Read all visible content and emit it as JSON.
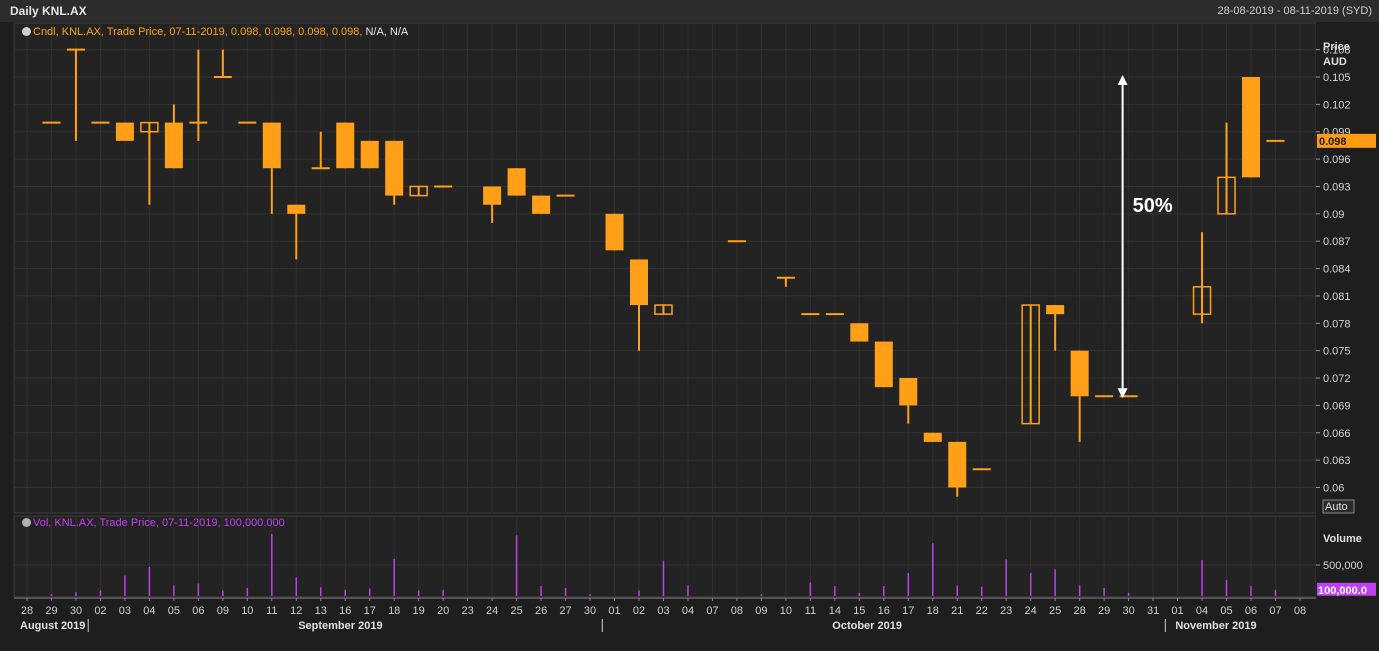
{
  "window": {
    "title": "Daily KNL.AX",
    "date_range": "28-08-2019 - 08-11-2019 (SYD)"
  },
  "price_panel": {
    "legend_main": "Cndl, KNL.AX, Trade Price, 07-11-2019, 0.098, 0.098, 0.098, 0.098,",
    "legend_tail": "N/A, N/A",
    "axis_title_1": "Price",
    "axis_title_2": "AUD",
    "last_price_label": "0.098",
    "auto_button": "Auto",
    "annotation_text": "50%"
  },
  "volume_panel": {
    "legend": "Vol, KNL.AX, Trade Price, 07-11-2019, 100,000.000",
    "axis_title": "Volume",
    "tick_label": "500,000",
    "last_volume_label": "100,000.0"
  },
  "colors": {
    "candle": "#ffa018",
    "volume": "#c040f0",
    "annotation": "#ffffff",
    "background": "#1e1e1e"
  },
  "chart_data": {
    "type": "candlestick",
    "price_axis": {
      "ticks": [
        "0.108",
        "0.105",
        "0.102",
        "0.099",
        "0.096",
        "0.093",
        "0.09",
        "0.087",
        "0.084",
        "0.081",
        "0.078",
        "0.075",
        "0.072",
        "0.069",
        "0.066",
        "0.063",
        "0.06"
      ],
      "range": [
        0.0567,
        0.1098
      ]
    },
    "volume_axis": {
      "range": [
        0,
        1000000
      ],
      "ticks": [
        500000
      ]
    },
    "x_labels": [
      "28",
      "29",
      "30",
      "02",
      "03",
      "04",
      "05",
      "06",
      "09",
      "10",
      "11",
      "12",
      "13",
      "16",
      "17",
      "18",
      "19",
      "20",
      "23",
      "24",
      "25",
      "26",
      "27",
      "30",
      "01",
      "02",
      "03",
      "04",
      "07",
      "08",
      "09",
      "10",
      "11",
      "14",
      "15",
      "16",
      "17",
      "18",
      "21",
      "22",
      "23",
      "24",
      "25",
      "28",
      "29",
      "30",
      "31",
      "01",
      "04",
      "05",
      "06",
      "07",
      "08"
    ],
    "months": [
      {
        "label": "August 2019",
        "start_index": 0
      },
      {
        "label": "September 2019",
        "start_index": 3
      },
      {
        "label": "October 2019",
        "start_index": 24
      },
      {
        "label": "November 2019",
        "start_index": 47
      }
    ],
    "candles": [
      {
        "x": "29-08",
        "i": 1,
        "o": 0.1,
        "h": 0.1,
        "l": 0.1,
        "c": 0.1
      },
      {
        "x": "30-08",
        "i": 2,
        "o": 0.108,
        "h": 0.108,
        "l": 0.098,
        "c": 0.108
      },
      {
        "x": "02-09",
        "i": 3,
        "o": 0.1,
        "h": 0.1,
        "l": 0.1,
        "c": 0.1
      },
      {
        "x": "03-09",
        "i": 4,
        "o": 0.1,
        "h": 0.1,
        "l": 0.098,
        "c": 0.098
      },
      {
        "x": "04-09",
        "i": 5,
        "o": 0.099,
        "h": 0.1,
        "l": 0.091,
        "c": 0.1
      },
      {
        "x": "05-09",
        "i": 6,
        "o": 0.1,
        "h": 0.102,
        "l": 0.095,
        "c": 0.095
      },
      {
        "x": "06-09",
        "i": 7,
        "o": 0.1,
        "h": 0.108,
        "l": 0.098,
        "c": 0.1
      },
      {
        "x": "09-09",
        "i": 8,
        "o": 0.105,
        "h": 0.108,
        "l": 0.105,
        "c": 0.105
      },
      {
        "x": "10-09",
        "i": 9,
        "o": 0.1,
        "h": 0.1,
        "l": 0.1,
        "c": 0.1
      },
      {
        "x": "11-09",
        "i": 10,
        "o": 0.1,
        "h": 0.1,
        "l": 0.09,
        "c": 0.095
      },
      {
        "x": "12-09",
        "i": 11,
        "o": 0.091,
        "h": 0.091,
        "l": 0.085,
        "c": 0.09
      },
      {
        "x": "13-09",
        "i": 12,
        "o": 0.095,
        "h": 0.099,
        "l": 0.095,
        "c": 0.095
      },
      {
        "x": "16-09",
        "i": 13,
        "o": 0.1,
        "h": 0.1,
        "l": 0.095,
        "c": 0.095
      },
      {
        "x": "17-09",
        "i": 14,
        "o": 0.098,
        "h": 0.098,
        "l": 0.095,
        "c": 0.095
      },
      {
        "x": "18-09",
        "i": 15,
        "o": 0.098,
        "h": 0.098,
        "l": 0.091,
        "c": 0.092
      },
      {
        "x": "19-09",
        "i": 16,
        "o": 0.092,
        "h": 0.093,
        "l": 0.092,
        "c": 0.093
      },
      {
        "x": "20-09",
        "i": 17,
        "o": 0.093,
        "h": 0.093,
        "l": 0.093,
        "c": 0.093
      },
      {
        "x": "24-09",
        "i": 19,
        "o": 0.093,
        "h": 0.093,
        "l": 0.089,
        "c": 0.091
      },
      {
        "x": "25-09",
        "i": 20,
        "o": 0.095,
        "h": 0.095,
        "l": 0.092,
        "c": 0.092
      },
      {
        "x": "26-09",
        "i": 21,
        "o": 0.092,
        "h": 0.092,
        "l": 0.09,
        "c": 0.09
      },
      {
        "x": "27-09",
        "i": 22,
        "o": 0.092,
        "h": 0.092,
        "l": 0.092,
        "c": 0.092
      },
      {
        "x": "01-10",
        "i": 24,
        "o": 0.09,
        "h": 0.09,
        "l": 0.086,
        "c": 0.086
      },
      {
        "x": "02-10",
        "i": 25,
        "o": 0.085,
        "h": 0.085,
        "l": 0.075,
        "c": 0.08
      },
      {
        "x": "03-10",
        "i": 26,
        "o": 0.079,
        "h": 0.08,
        "l": 0.079,
        "c": 0.08
      },
      {
        "x": "08-10",
        "i": 29,
        "o": 0.087,
        "h": 0.087,
        "l": 0.087,
        "c": 0.087
      },
      {
        "x": "10-10",
        "i": 31,
        "o": 0.083,
        "h": 0.083,
        "l": 0.082,
        "c": 0.083
      },
      {
        "x": "11-10",
        "i": 32,
        "o": 0.079,
        "h": 0.079,
        "l": 0.079,
        "c": 0.079
      },
      {
        "x": "14-10",
        "i": 33,
        "o": 0.079,
        "h": 0.079,
        "l": 0.079,
        "c": 0.079
      },
      {
        "x": "15-10",
        "i": 34,
        "o": 0.078,
        "h": 0.078,
        "l": 0.076,
        "c": 0.076
      },
      {
        "x": "16-10",
        "i": 35,
        "o": 0.076,
        "h": 0.076,
        "l": 0.071,
        "c": 0.071
      },
      {
        "x": "17-10",
        "i": 36,
        "o": 0.072,
        "h": 0.072,
        "l": 0.067,
        "c": 0.069
      },
      {
        "x": "18-10",
        "i": 37,
        "o": 0.066,
        "h": 0.066,
        "l": 0.065,
        "c": 0.065
      },
      {
        "x": "21-10",
        "i": 38,
        "o": 0.065,
        "h": 0.065,
        "l": 0.059,
        "c": 0.06
      },
      {
        "x": "22-10",
        "i": 39,
        "o": 0.062,
        "h": 0.062,
        "l": 0.062,
        "c": 0.062
      },
      {
        "x": "24-10",
        "i": 41,
        "o": 0.067,
        "h": 0.08,
        "l": 0.067,
        "c": 0.08
      },
      {
        "x": "25-10",
        "i": 42,
        "o": 0.08,
        "h": 0.08,
        "l": 0.075,
        "c": 0.079
      },
      {
        "x": "28-10",
        "i": 43,
        "o": 0.075,
        "h": 0.075,
        "l": 0.065,
        "c": 0.07
      },
      {
        "x": "29-10",
        "i": 44,
        "o": 0.07,
        "h": 0.07,
        "l": 0.07,
        "c": 0.07
      },
      {
        "x": "30-10",
        "i": 45,
        "o": 0.07,
        "h": 0.07,
        "l": 0.07,
        "c": 0.07
      },
      {
        "x": "04-11",
        "i": 48,
        "o": 0.079,
        "h": 0.088,
        "l": 0.078,
        "c": 0.082
      },
      {
        "x": "05-11",
        "i": 49,
        "o": 0.09,
        "h": 0.1,
        "l": 0.09,
        "c": 0.094
      },
      {
        "x": "06-11",
        "i": 50,
        "o": 0.105,
        "h": 0.105,
        "l": 0.094,
        "c": 0.094
      },
      {
        "x": "07-11",
        "i": 51,
        "o": 0.098,
        "h": 0.098,
        "l": 0.098,
        "c": 0.098
      }
    ],
    "volumes": [
      {
        "i": 1,
        "v": 30000
      },
      {
        "i": 2,
        "v": 60000
      },
      {
        "i": 3,
        "v": 90000
      },
      {
        "i": 4,
        "v": 330000
      },
      {
        "i": 5,
        "v": 470000
      },
      {
        "i": 6,
        "v": 170000
      },
      {
        "i": 7,
        "v": 200000
      },
      {
        "i": 8,
        "v": 90000
      },
      {
        "i": 9,
        "v": 130000
      },
      {
        "i": 10,
        "v": 1000000
      },
      {
        "i": 11,
        "v": 300000
      },
      {
        "i": 12,
        "v": 140000
      },
      {
        "i": 13,
        "v": 100000
      },
      {
        "i": 14,
        "v": 120000
      },
      {
        "i": 15,
        "v": 600000
      },
      {
        "i": 16,
        "v": 90000
      },
      {
        "i": 17,
        "v": 100000
      },
      {
        "i": 20,
        "v": 980000
      },
      {
        "i": 21,
        "v": 160000
      },
      {
        "i": 22,
        "v": 130000
      },
      {
        "i": 23,
        "v": 30000
      },
      {
        "i": 25,
        "v": 90000
      },
      {
        "i": 26,
        "v": 570000
      },
      {
        "i": 27,
        "v": 170000
      },
      {
        "i": 30,
        "v": 30000
      },
      {
        "i": 32,
        "v": 220000
      },
      {
        "i": 33,
        "v": 160000
      },
      {
        "i": 34,
        "v": 50000
      },
      {
        "i": 35,
        "v": 160000
      },
      {
        "i": 36,
        "v": 370000
      },
      {
        "i": 37,
        "v": 850000
      },
      {
        "i": 38,
        "v": 170000
      },
      {
        "i": 39,
        "v": 150000
      },
      {
        "i": 40,
        "v": 590000
      },
      {
        "i": 41,
        "v": 370000
      },
      {
        "i": 42,
        "v": 430000
      },
      {
        "i": 43,
        "v": 170000
      },
      {
        "i": 44,
        "v": 130000
      },
      {
        "i": 45,
        "v": 50000
      },
      {
        "i": 48,
        "v": 580000
      },
      {
        "i": 49,
        "v": 260000
      },
      {
        "i": 50,
        "v": 160000
      },
      {
        "i": 51,
        "v": 100000
      }
    ],
    "annotation": {
      "label": "50%",
      "from": 0.07,
      "to": 0.105,
      "x_index": 45
    }
  }
}
